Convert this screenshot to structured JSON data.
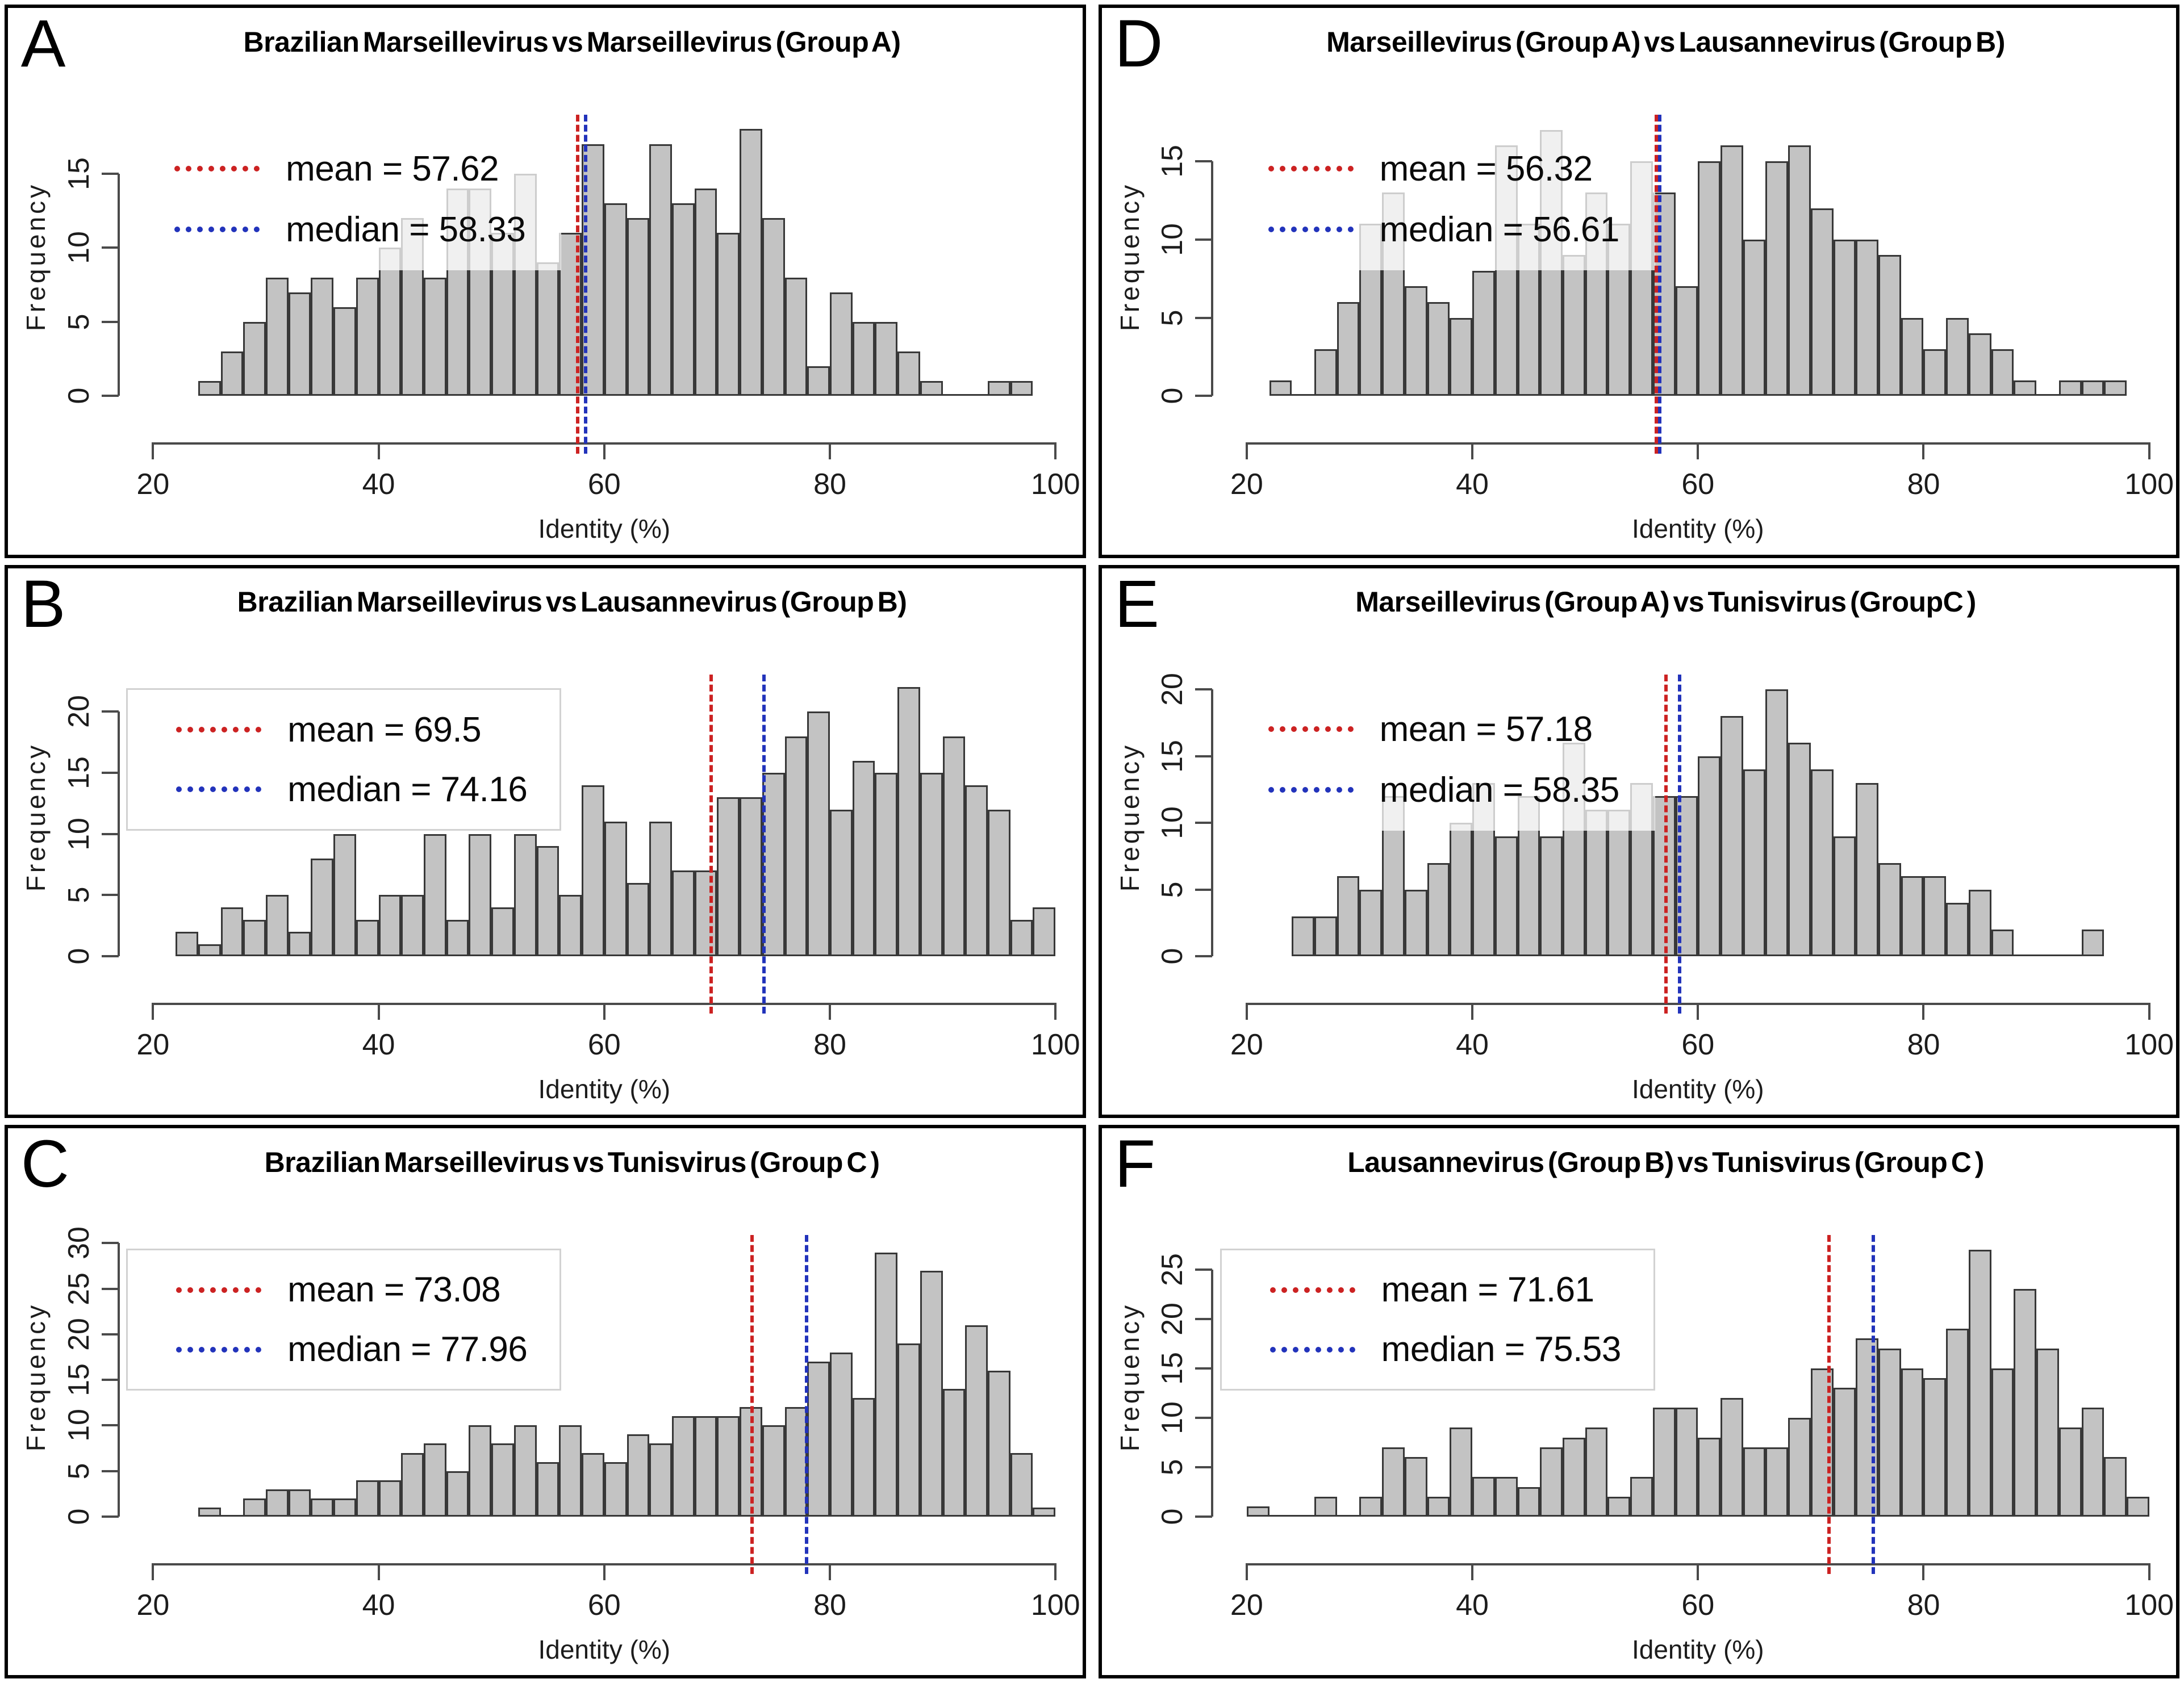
{
  "figure": {
    "panel_order": [
      0,
      3,
      1,
      4,
      2,
      5
    ],
    "colors": {
      "background": "#ffffff",
      "panel_border": "#000000",
      "bar_fill": "#c3c3c3",
      "bar_border": "#383838",
      "axis": "#4a4a4a",
      "mean_line": "#cc2222",
      "median_line": "#2233bb",
      "legend_border": "#d2d2d2"
    }
  },
  "chart_data": [
    {
      "type": "bar",
      "letter": "A",
      "title": "Brazilian Marseillevirus vs Marseillevirus (Group A)",
      "xlabel": "Identity (%)",
      "ylabel": "Frequency",
      "mean": 57.62,
      "median": 58.33,
      "legend": {
        "mean_label": "mean = 57.62",
        "median_label": "median = 58.33"
      },
      "legend_translucent": true,
      "x_ticks": [
        20,
        40,
        60,
        80,
        100
      ],
      "xlim": [
        20,
        100
      ],
      "y_ticks": [
        0,
        5,
        10,
        15
      ],
      "ylim": [
        0,
        18.8
      ],
      "bin_start": 24,
      "bin_width": 2,
      "counts": [
        1,
        3,
        5,
        8,
        7,
        8,
        6,
        8,
        10,
        12,
        8,
        14,
        14,
        11,
        15,
        9,
        11,
        17,
        13,
        12,
        17,
        13,
        14,
        11,
        18,
        12,
        8,
        2,
        7,
        5,
        5,
        3,
        1,
        0,
        0,
        1,
        1
      ]
    },
    {
      "type": "bar",
      "letter": "B",
      "title": "Brazilian Marseillevirus vs Lausannevirus (Group B)",
      "xlabel": "Identity (%)",
      "ylabel": "Frequency",
      "mean": 69.5,
      "median": 74.16,
      "legend": {
        "mean_label": "mean = 69.5",
        "median_label": "median = 74.16"
      },
      "legend_translucent": false,
      "x_ticks": [
        20,
        40,
        60,
        80,
        100
      ],
      "xlim": [
        20,
        100
      ],
      "y_ticks": [
        0,
        5,
        10,
        15,
        20
      ],
      "ylim": [
        0,
        22.8
      ],
      "bin_start": 22,
      "bin_width": 2,
      "counts": [
        2,
        1,
        4,
        3,
        5,
        2,
        8,
        10,
        3,
        5,
        5,
        10,
        3,
        10,
        4,
        10,
        9,
        5,
        14,
        11,
        6,
        11,
        7,
        7,
        13,
        13,
        15,
        18,
        20,
        12,
        16,
        15,
        22,
        15,
        18,
        14,
        12,
        3,
        4
      ]
    },
    {
      "type": "bar",
      "letter": "C",
      "title": "Brazilian Marseillevirus vs Tunisvirus (Group C )",
      "xlabel": "Identity (%)",
      "ylabel": "Frequency",
      "mean": 73.08,
      "median": 77.96,
      "legend": {
        "mean_label": "mean = 73.08",
        "median_label": "median = 77.96"
      },
      "legend_translucent": false,
      "x_ticks": [
        20,
        40,
        60,
        80,
        100
      ],
      "xlim": [
        20,
        100
      ],
      "y_ticks": [
        0,
        5,
        10,
        15,
        20,
        25,
        30
      ],
      "ylim": [
        0,
        30.6
      ],
      "bin_start": 24,
      "bin_width": 2,
      "counts": [
        1,
        0,
        2,
        3,
        3,
        2,
        2,
        4,
        4,
        7,
        8,
        5,
        10,
        8,
        10,
        6,
        10,
        7,
        6,
        9,
        8,
        11,
        11,
        11,
        12,
        10,
        12,
        17,
        18,
        13,
        29,
        19,
        27,
        14,
        21,
        16,
        7,
        1
      ]
    },
    {
      "type": "bar",
      "letter": "D",
      "title": "Marseillevirus (Group A) vs Lausannevirus (Group B)",
      "xlabel": "Identity (%)",
      "ylabel": "Frequency",
      "mean": 56.32,
      "median": 56.61,
      "legend": {
        "mean_label": "mean = 56.32",
        "median_label": "median = 56.61"
      },
      "legend_translucent": true,
      "x_ticks": [
        20,
        40,
        60,
        80,
        100
      ],
      "xlim": [
        20,
        100
      ],
      "y_ticks": [
        0,
        5,
        10,
        15
      ],
      "ylim": [
        0,
        17.8
      ],
      "bin_start": 22,
      "bin_width": 2,
      "counts": [
        1,
        0,
        3,
        6,
        11,
        13,
        7,
        6,
        5,
        8,
        16,
        11,
        17,
        9,
        13,
        11,
        15,
        13,
        7,
        15,
        16,
        10,
        15,
        16,
        12,
        10,
        10,
        9,
        5,
        3,
        5,
        4,
        3,
        1,
        0,
        1,
        1,
        1
      ]
    },
    {
      "type": "bar",
      "letter": "E",
      "title": "Marseillevirus (Group A) vs Tunisvirus (GroupC )",
      "xlabel": "Identity (%)",
      "ylabel": "Frequency",
      "mean": 57.18,
      "median": 58.35,
      "legend": {
        "mean_label": "mean = 57.18",
        "median_label": "median = 58.35"
      },
      "legend_translucent": true,
      "x_ticks": [
        20,
        40,
        60,
        80,
        100
      ],
      "xlim": [
        20,
        100
      ],
      "y_ticks": [
        0,
        5,
        10,
        15,
        20
      ],
      "ylim": [
        0,
        20.9
      ],
      "bin_start": 24,
      "bin_width": 2,
      "counts": [
        3,
        3,
        6,
        5,
        12,
        5,
        7,
        10,
        13,
        9,
        12,
        9,
        16,
        11,
        11,
        13,
        12,
        12,
        15,
        18,
        14,
        20,
        16,
        14,
        9,
        13,
        7,
        6,
        6,
        4,
        5,
        2,
        0,
        0,
        0,
        2
      ]
    },
    {
      "type": "bar",
      "letter": "F",
      "title": "Lausannevirus (Group B) vs Tunisvirus (Group C )",
      "xlabel": "Identity (%)",
      "ylabel": "Frequency",
      "mean": 71.61,
      "median": 75.53,
      "legend": {
        "mean_label": "mean = 71.61",
        "median_label": "median = 75.53"
      },
      "legend_translucent": false,
      "x_ticks": [
        20,
        40,
        60,
        80,
        100
      ],
      "xlim": [
        20,
        100
      ],
      "y_ticks": [
        0,
        5,
        10,
        15,
        20,
        25
      ],
      "ylim": [
        0,
        28.2
      ],
      "bin_start": 20,
      "bin_width": 2,
      "counts": [
        1,
        0,
        0,
        2,
        0,
        2,
        7,
        6,
        2,
        9,
        4,
        4,
        3,
        7,
        8,
        9,
        2,
        4,
        11,
        11,
        8,
        12,
        7,
        7,
        10,
        15,
        13,
        18,
        17,
        15,
        14,
        19,
        27,
        15,
        23,
        17,
        9,
        11,
        6,
        2
      ]
    }
  ]
}
